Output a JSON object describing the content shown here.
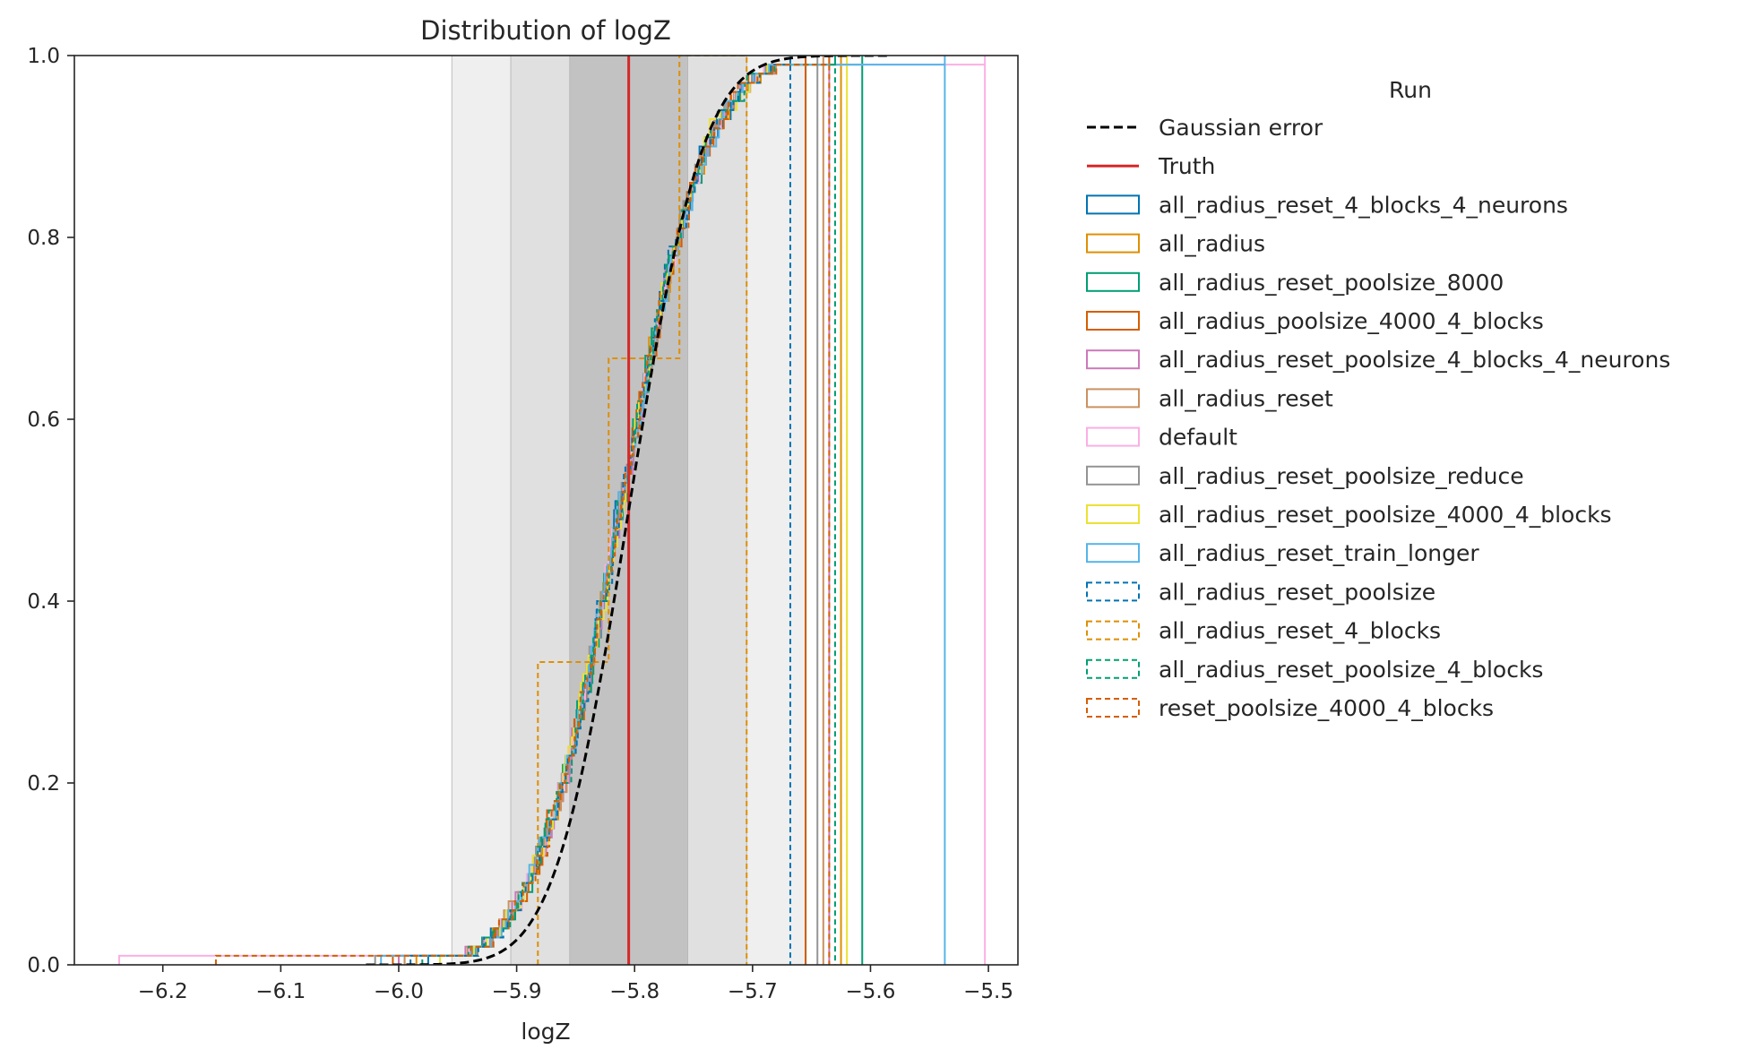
{
  "chart_data": {
    "type": "line",
    "title": "Distribution of logZ",
    "xlabel": "logZ",
    "ylabel": "",
    "xlim": [
      -6.275,
      -5.475
    ],
    "ylim": [
      0.0,
      1.0
    ],
    "x_ticks": [
      -6.2,
      -6.1,
      -6.0,
      -5.9,
      -5.8,
      -5.7,
      -5.6,
      -5.5
    ],
    "x_tick_labels": [
      "−6.2",
      "−6.1",
      "−6.0",
      "−5.9",
      "−5.8",
      "−5.7",
      "−5.6",
      "−5.5"
    ],
    "y_ticks": [
      0.0,
      0.2,
      0.4,
      0.6,
      0.8,
      1.0
    ],
    "y_tick_labels": [
      "0.0",
      "0.2",
      "0.4",
      "0.6",
      "0.8",
      "1.0"
    ],
    "grid": false,
    "legend": {
      "title": "Run",
      "placement": "outside-right"
    },
    "truth": -5.805,
    "gaussian": {
      "name": "Gaussian error",
      "mean": -5.805,
      "sigma": 0.0495
    },
    "sigma_bands": [
      {
        "lo": -5.855,
        "hi": -5.755,
        "shade": "#c2c2c2"
      },
      {
        "lo": -5.905,
        "hi": -5.705,
        "shade": "#e0e0e0"
      },
      {
        "lo": -5.955,
        "hi": -5.655,
        "shade": "#efefef"
      }
    ],
    "series": [
      {
        "name": "Gaussian error",
        "color": "#000000",
        "style": "dashed",
        "kind": "line"
      },
      {
        "name": "Truth",
        "color": "#d62728",
        "style": "solid",
        "kind": "line"
      },
      {
        "name": "all_radius_reset_4_blocks_4_neurons",
        "color": "#0173b2",
        "style": "solid",
        "kind": "step",
        "min": -5.975,
        "max": -5.655
      },
      {
        "name": "all_radius",
        "color": "#de8f05",
        "style": "solid",
        "kind": "step",
        "min": -5.985,
        "max": -5.625
      },
      {
        "name": "all_radius_reset_poolsize_8000",
        "color": "#029e73",
        "style": "solid",
        "kind": "step",
        "min": -5.995,
        "max": -5.607
      },
      {
        "name": "all_radius_poolsize_4000_4_blocks",
        "color": "#d55e00",
        "style": "solid",
        "kind": "step",
        "min": -6.005,
        "max": -5.655
      },
      {
        "name": "all_radius_reset_poolsize_4_blocks_4_neurons",
        "color": "#cc78bc",
        "style": "solid",
        "kind": "step",
        "min": -6.0,
        "max": -5.635
      },
      {
        "name": "all_radius_reset",
        "color": "#ca9161",
        "style": "solid",
        "kind": "step",
        "min": -5.995,
        "max": -5.64
      },
      {
        "name": "default",
        "color": "#fbafe4",
        "style": "solid",
        "kind": "step",
        "min": -6.237,
        "max": -5.503
      },
      {
        "name": "all_radius_reset_poolsize_reduce",
        "color": "#949494",
        "style": "solid",
        "kind": "step",
        "min": -6.02,
        "max": -5.645
      },
      {
        "name": "all_radius_reset_poolsize_4000_4_blocks",
        "color": "#ece133",
        "style": "solid",
        "kind": "step",
        "min": -5.965,
        "max": -5.62
      },
      {
        "name": "all_radius_reset_train_longer",
        "color": "#56b4e9",
        "style": "solid",
        "kind": "step",
        "min": -6.015,
        "max": -5.537
      },
      {
        "name": "all_radius_reset_poolsize",
        "color": "#0173b2",
        "style": "dashed",
        "kind": "step",
        "min": -5.99,
        "max": -5.668
      },
      {
        "name": "all_radius_reset_4_blocks",
        "color": "#de8f05",
        "style": "dashed",
        "kind": "step",
        "min": -5.88,
        "max": -5.705
      },
      {
        "name": "all_radius_reset_poolsize_4_blocks",
        "color": "#029e73",
        "style": "dashed",
        "kind": "step",
        "min": -5.98,
        "max": -5.63
      },
      {
        "name": "reset_poolsize_4000_4_blocks",
        "color": "#d55e00",
        "style": "dashed",
        "kind": "step",
        "min": -6.155,
        "max": -5.635
      }
    ],
    "special_steps": {
      "all_radius_reset_4_blocks": {
        "x": [
          -5.882,
          -5.882,
          -5.822,
          -5.822,
          -5.762,
          -5.762,
          -5.705,
          -5.705
        ],
        "y": [
          0.0,
          0.333,
          0.333,
          0.667,
          0.667,
          1.0,
          1.0,
          0.0
        ]
      }
    }
  }
}
